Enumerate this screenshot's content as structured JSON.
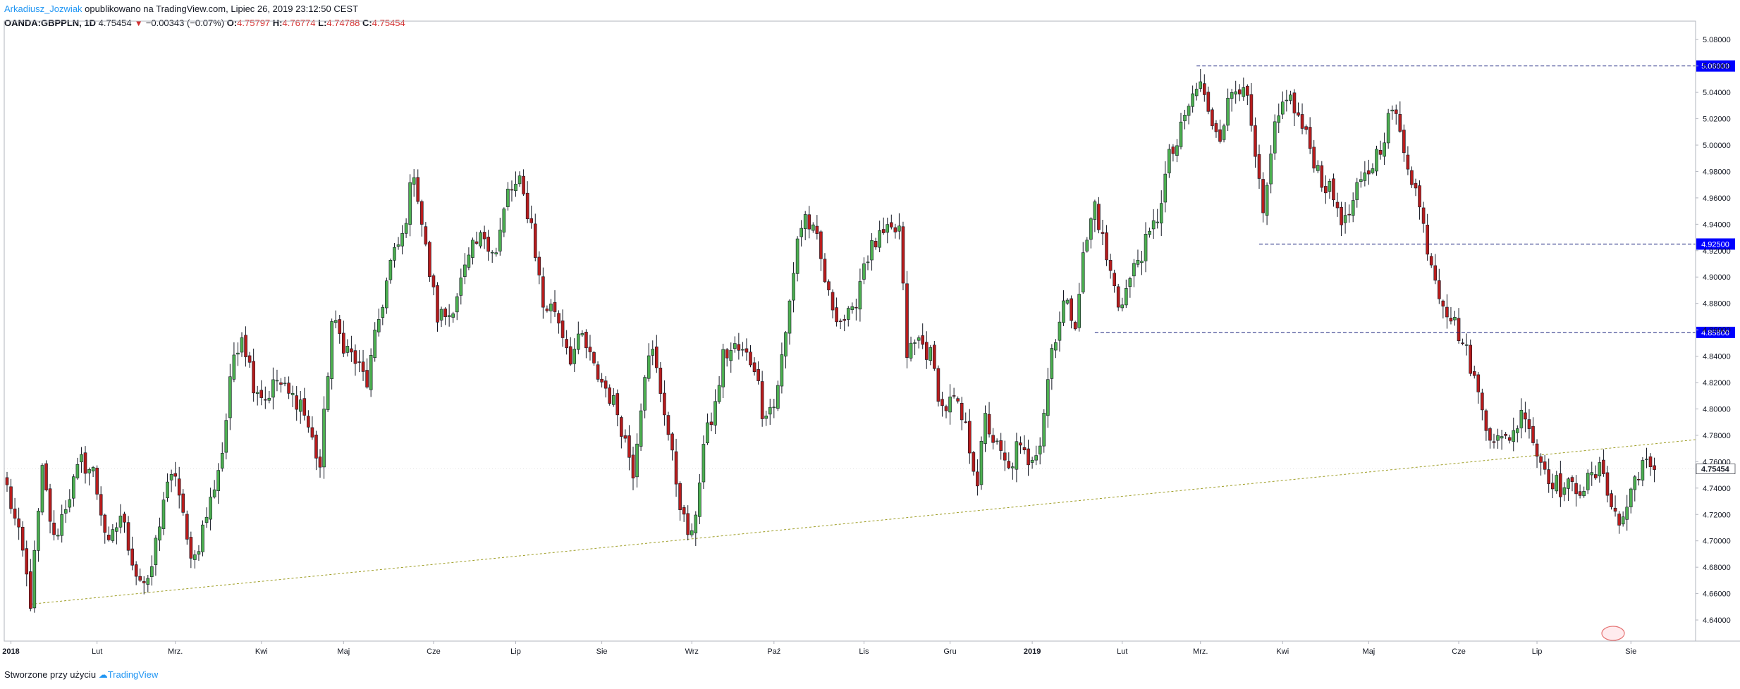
{
  "header": {
    "author": "Arkadiusz_Jozwiak",
    "published": "opublikowano na TradingView.com, Lipiec 26, 2019 23:12:50 CEST",
    "symbol": "OANDA:GBPPLN, 1D",
    "last": "4.75454",
    "change": "−0.00343 (−0.07%)",
    "o_label": "O:",
    "o_value": "4.75797",
    "h_label": "H:",
    "h_value": "4.76774",
    "l_label": "L:",
    "l_value": "4.74788",
    "c_label": "C:",
    "c_value": "4.75454"
  },
  "footer": {
    "created_with": "Stworzone przy użyciu",
    "brand": "TradingView"
  },
  "colors": {
    "up": "#4caf50",
    "down": "#b71c1c",
    "level_line": "#1a237e",
    "level_badge": "#0000ff",
    "trendline": "#9e9d24"
  },
  "chart_data": {
    "type": "candlestick",
    "symbol": "OANDA:GBPPLN",
    "interval": "1D",
    "ylim": [
      4.624,
      5.094
    ],
    "y_ticks": [
      "5.08000",
      "5.06000",
      "5.04000",
      "5.02000",
      "5.00000",
      "4.98000",
      "4.96000",
      "4.94000",
      "4.92000",
      "4.90000",
      "4.88000",
      "4.86000",
      "4.84000",
      "4.82000",
      "4.80000",
      "4.78000",
      "4.76000",
      "4.74000",
      "4.72000",
      "4.70000",
      "4.68000",
      "4.66000",
      "4.64000"
    ],
    "x_ticks": [
      {
        "label": "2018",
        "i": 1,
        "bold": true
      },
      {
        "label": "Lut",
        "i": 23
      },
      {
        "label": "Mrz.",
        "i": 43
      },
      {
        "label": "Kwi",
        "i": 65
      },
      {
        "label": "Maj",
        "i": 86
      },
      {
        "label": "Cze",
        "i": 109
      },
      {
        "label": "Lip",
        "i": 130
      },
      {
        "label": "Sie",
        "i": 152
      },
      {
        "label": "Wrz",
        "i": 175
      },
      {
        "label": "Paź",
        "i": 196
      },
      {
        "label": "Lis",
        "i": 219
      },
      {
        "label": "Gru",
        "i": 241
      },
      {
        "label": "2019",
        "i": 262,
        "bold": true
      },
      {
        "label": "Lut",
        "i": 285
      },
      {
        "label": "Mrz.",
        "i": 305
      },
      {
        "label": "Kwi",
        "i": 326
      },
      {
        "label": "Maj",
        "i": 348
      },
      {
        "label": "Cze",
        "i": 371
      },
      {
        "label": "Lip",
        "i": 391
      },
      {
        "label": "Sie",
        "i": 415
      }
    ],
    "price_levels": [
      {
        "value": 5.06,
        "label": "5.06000",
        "from_i": 304
      },
      {
        "value": 4.925,
        "label": "4.92500",
        "from_i": 320
      },
      {
        "value": 4.858,
        "label": "4.85800",
        "from_i": 278
      }
    ],
    "current_price": {
      "value": 4.75454,
      "label": "4.75454"
    },
    "trendline": {
      "x1_i": 6,
      "y1": 4.652,
      "x2_i": 436,
      "y2": 4.778
    },
    "anchors": [
      [
        0,
        4.74
      ],
      [
        4,
        4.69
      ],
      [
        6,
        4.654
      ],
      [
        9,
        4.752
      ],
      [
        12,
        4.7
      ],
      [
        15,
        4.728
      ],
      [
        19,
        4.76
      ],
      [
        22,
        4.752
      ],
      [
        26,
        4.694
      ],
      [
        29,
        4.72
      ],
      [
        33,
        4.676
      ],
      [
        36,
        4.664
      ],
      [
        40,
        4.732
      ],
      [
        43,
        4.752
      ],
      [
        46,
        4.698
      ],
      [
        48,
        4.688
      ],
      [
        52,
        4.73
      ],
      [
        55,
        4.768
      ],
      [
        58,
        4.842
      ],
      [
        60,
        4.858
      ],
      [
        63,
        4.82
      ],
      [
        66,
        4.808
      ],
      [
        69,
        4.822
      ],
      [
        72,
        4.81
      ],
      [
        75,
        4.806
      ],
      [
        80,
        4.756
      ],
      [
        83,
        4.866
      ],
      [
        86,
        4.85
      ],
      [
        89,
        4.836
      ],
      [
        92,
        4.82
      ],
      [
        95,
        4.868
      ],
      [
        98,
        4.91
      ],
      [
        101,
        4.93
      ],
      [
        104,
        4.982
      ],
      [
        107,
        4.92
      ],
      [
        110,
        4.87
      ],
      [
        113,
        4.872
      ],
      [
        116,
        4.896
      ],
      [
        119,
        4.92
      ],
      [
        122,
        4.932
      ],
      [
        125,
        4.918
      ],
      [
        128,
        4.964
      ],
      [
        131,
        4.97
      ],
      [
        134,
        4.94
      ],
      [
        137,
        4.878
      ],
      [
        140,
        4.876
      ],
      [
        144,
        4.84
      ],
      [
        147,
        4.854
      ],
      [
        150,
        4.83
      ],
      [
        153,
        4.816
      ],
      [
        156,
        4.798
      ],
      [
        160,
        4.754
      ],
      [
        163,
        4.83
      ],
      [
        165,
        4.842
      ],
      [
        168,
        4.8
      ],
      [
        170,
        4.762
      ],
      [
        173,
        4.714
      ],
      [
        175,
        4.7
      ],
      [
        178,
        4.772
      ],
      [
        181,
        4.802
      ],
      [
        183,
        4.84
      ],
      [
        186,
        4.846
      ],
      [
        189,
        4.84
      ],
      [
        191,
        4.834
      ],
      [
        193,
        4.8
      ],
      [
        196,
        4.802
      ],
      [
        199,
        4.856
      ],
      [
        202,
        4.93
      ],
      [
        204,
        4.946
      ],
      [
        207,
        4.926
      ],
      [
        210,
        4.884
      ],
      [
        213,
        4.868
      ],
      [
        216,
        4.87
      ],
      [
        219,
        4.912
      ],
      [
        222,
        4.926
      ],
      [
        225,
        4.932
      ],
      [
        228,
        4.936
      ],
      [
        230,
        4.842
      ],
      [
        233,
        4.852
      ],
      [
        236,
        4.84
      ],
      [
        239,
        4.8
      ],
      [
        242,
        4.806
      ],
      [
        245,
        4.784
      ],
      [
        248,
        4.746
      ],
      [
        250,
        4.792
      ],
      [
        253,
        4.77
      ],
      [
        256,
        4.752
      ],
      [
        258,
        4.77
      ],
      [
        261,
        4.762
      ],
      [
        264,
        4.776
      ],
      [
        267,
        4.846
      ],
      [
        270,
        4.88
      ],
      [
        273,
        4.868
      ],
      [
        275,
        4.914
      ],
      [
        278,
        4.956
      ],
      [
        281,
        4.914
      ],
      [
        284,
        4.88
      ],
      [
        286,
        4.89
      ],
      [
        289,
        4.914
      ],
      [
        292,
        4.93
      ],
      [
        294,
        4.946
      ],
      [
        297,
        4.99
      ],
      [
        299,
        5.0
      ],
      [
        302,
        5.03
      ],
      [
        305,
        5.048
      ],
      [
        307,
        5.022
      ],
      [
        310,
        5.01
      ],
      [
        313,
        5.04
      ],
      [
        316,
        5.05
      ],
      [
        319,
        4.99
      ],
      [
        321,
        4.944
      ],
      [
        324,
        5.01
      ],
      [
        327,
        5.04
      ],
      [
        330,
        5.02
      ],
      [
        333,
        4.998
      ],
      [
        336,
        4.974
      ],
      [
        339,
        4.96
      ],
      [
        342,
        4.94
      ],
      [
        345,
        4.964
      ],
      [
        348,
        4.98
      ],
      [
        351,
        5.0
      ],
      [
        354,
        5.028
      ],
      [
        357,
        4.998
      ],
      [
        360,
        4.966
      ],
      [
        363,
        4.924
      ],
      [
        366,
        4.89
      ],
      [
        368,
        4.876
      ],
      [
        371,
        4.858
      ],
      [
        374,
        4.834
      ],
      [
        376,
        4.81
      ],
      [
        379,
        4.782
      ],
      [
        382,
        4.774
      ],
      [
        385,
        4.784
      ],
      [
        388,
        4.8
      ],
      [
        391,
        4.766
      ],
      [
        394,
        4.75
      ],
      [
        397,
        4.74
      ],
      [
        400,
        4.74
      ],
      [
        403,
        4.742
      ],
      [
        406,
        4.75
      ],
      [
        408,
        4.754
      ],
      [
        410,
        4.728
      ],
      [
        412,
        4.712
      ],
      [
        414,
        4.726
      ],
      [
        416,
        4.748
      ],
      [
        418,
        4.76
      ],
      [
        420,
        4.752
      ],
      [
        421,
        4.754
      ]
    ]
  }
}
